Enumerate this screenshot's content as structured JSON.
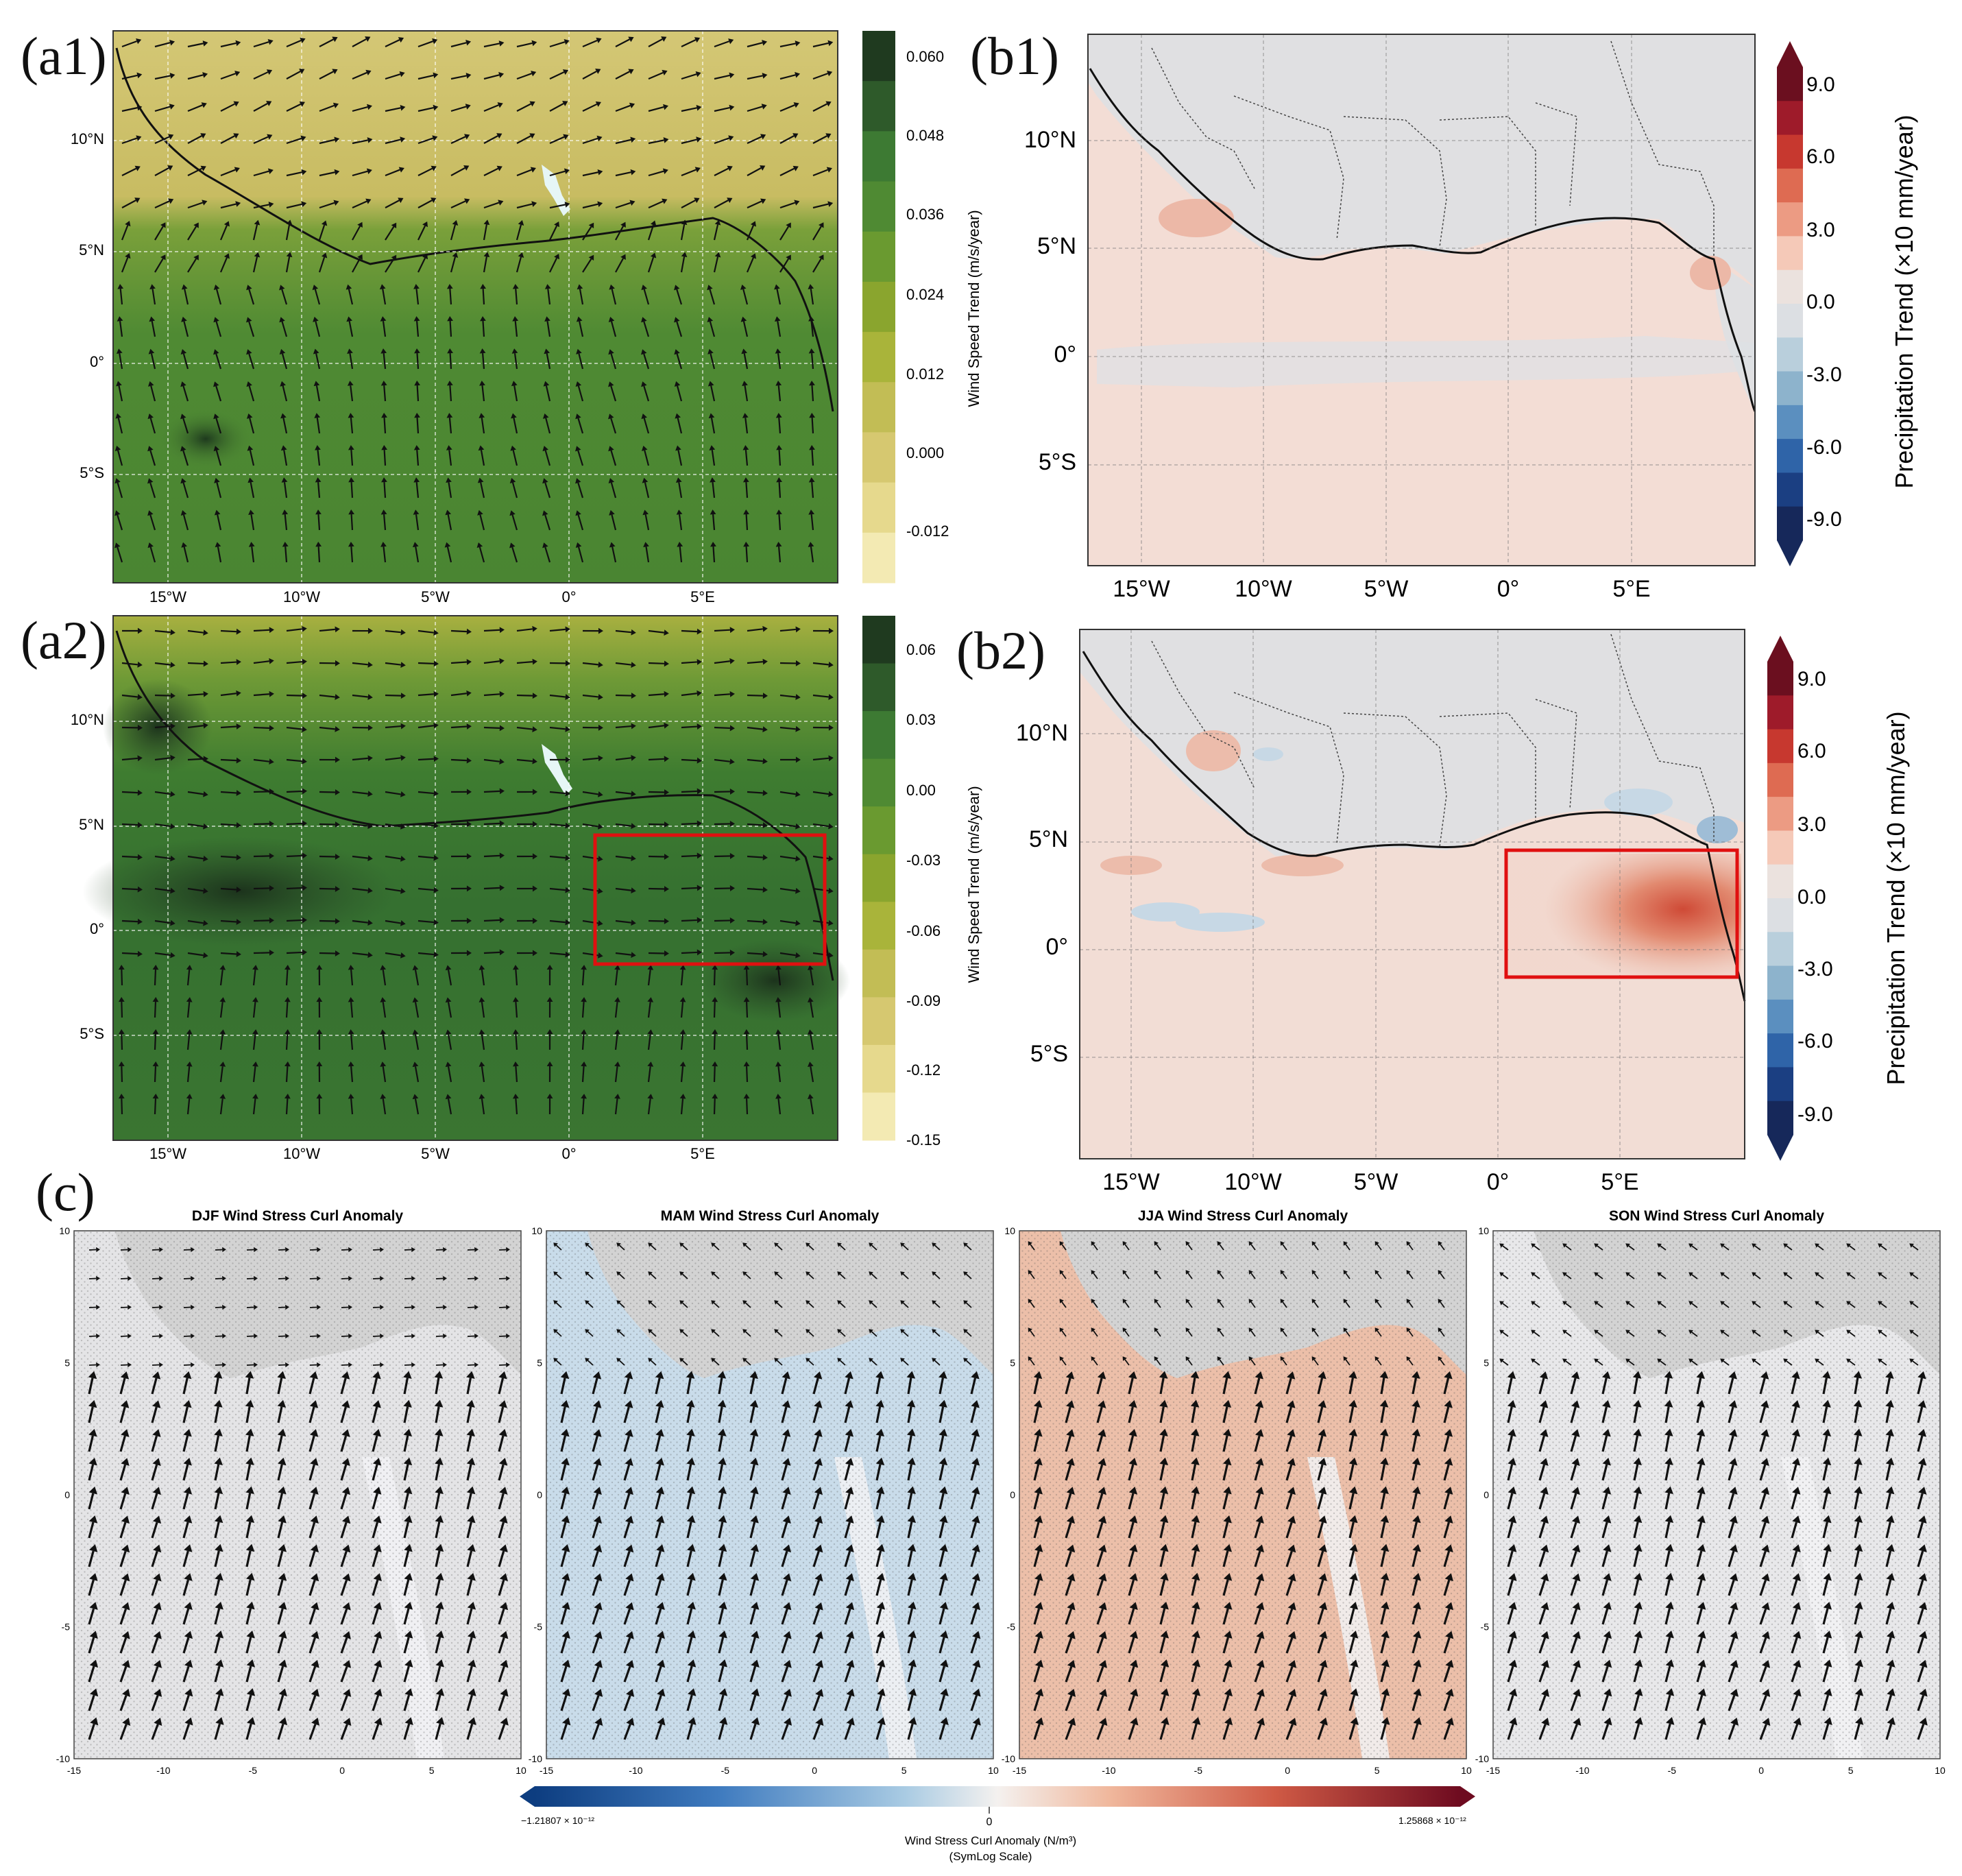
{
  "panels": {
    "a1": {
      "label": "(a1)",
      "lat_ticks": [
        "10°N",
        "5°N",
        "0°",
        "5°S"
      ],
      "lon_ticks": [
        "15°W",
        "10°W",
        "5°W",
        "0°",
        "5°E"
      ],
      "colorbar": {
        "title": "Wind Speed Trend (m/s/year)",
        "ticks": [
          "0.060",
          "0.048",
          "0.036",
          "0.024",
          "0.012",
          "0.000",
          "-0.012"
        ],
        "colors": [
          "#1f3a1f",
          "#2e5a2a",
          "#3d7a33",
          "#4f8a33",
          "#6a9a30",
          "#8aa52e",
          "#a9b43a",
          "#c2bd55",
          "#d6c870",
          "#e6d98d",
          "#f3eab3"
        ]
      }
    },
    "a2": {
      "label": "(a2)",
      "lat_ticks": [
        "10°N",
        "5°N",
        "0°",
        "5°S"
      ],
      "lon_ticks": [
        "15°W",
        "10°W",
        "5°W",
        "0°",
        "5°E"
      ],
      "colorbar": {
        "title": "Wind Speed Trend (m/s/year)",
        "ticks": [
          "0.06",
          "0.03",
          "0.00",
          "-0.03",
          "-0.06",
          "-0.09",
          "-0.12",
          "-0.15"
        ],
        "colors": [
          "#1f3a1f",
          "#2e5a2a",
          "#3d7a33",
          "#4f8a33",
          "#6a9a30",
          "#8aa52e",
          "#a9b43a",
          "#c2bd55",
          "#d6c870",
          "#e6d98d",
          "#f3eab3"
        ]
      }
    },
    "b1": {
      "label": "(b1)",
      "lat_ticks": [
        "10°N",
        "5°N",
        "0°",
        "5°S"
      ],
      "lon_ticks": [
        "15°W",
        "10°W",
        "5°W",
        "0°",
        "5°E"
      ],
      "colorbar": {
        "title": "Precipitation Trend (×10 mm/year)",
        "ticks": [
          "9.0",
          "6.0",
          "3.0",
          "0.0",
          "-3.0",
          "-6.0",
          "-9.0"
        ],
        "colors": [
          "#6b0f1f",
          "#9e1b2a",
          "#c7382f",
          "#de6b52",
          "#ec9b83",
          "#f5c9b8",
          "#ebe2de",
          "#dcdfe3",
          "#b9cfdc",
          "#8db3cc",
          "#5b8fbf",
          "#2f64a8",
          "#1b3f82",
          "#16285a"
        ]
      }
    },
    "b2": {
      "label": "(b2)",
      "lat_ticks": [
        "10°N",
        "5°N",
        "0°",
        "5°S"
      ],
      "lon_ticks": [
        "15°W",
        "10°W",
        "5°W",
        "0°",
        "5°E"
      ],
      "colorbar": {
        "title": "Precipitation Trend (×10 mm/year)",
        "ticks": [
          "9.0",
          "6.0",
          "3.0",
          "0.0",
          "-3.0",
          "-6.0",
          "-9.0"
        ],
        "colors": [
          "#6b0f1f",
          "#9e1b2a",
          "#c7382f",
          "#de6b52",
          "#ec9b83",
          "#f5c9b8",
          "#ebe2de",
          "#dcdfe3",
          "#b9cfdc",
          "#8db3cc",
          "#5b8fbf",
          "#2f64a8",
          "#1b3f82",
          "#16285a"
        ]
      }
    },
    "c": {
      "label": "(c)",
      "subplots": [
        {
          "title": "DJF Wind Stress Curl Anomaly",
          "fill": "#e4e4e6"
        },
        {
          "title": "MAM Wind Stress Curl Anomaly",
          "fill": "#c9dcea"
        },
        {
          "title": "JJA Wind Stress Curl Anomaly",
          "fill": "#ecbfa9"
        },
        {
          "title": "SON Wind Stress Curl Anomaly",
          "fill": "#e8e8ea"
        }
      ],
      "y_ticks": [
        "10",
        "5",
        "0",
        "-5",
        "-10"
      ],
      "x_ticks": [
        "-15",
        "-10",
        "-5",
        "0",
        "5",
        "10"
      ],
      "colorbar": {
        "min_label": "−1.21807 × 10⁻¹²",
        "mid_label": "0",
        "max_label": "1.25868 × 10⁻¹²",
        "title": "Wind Stress Curl Anomaly (N/m³)",
        "subtitle": "(SymLog Scale)"
      }
    }
  },
  "colors": {
    "land_gray": "#d3d3d3",
    "highlight_box": "#e01010",
    "coast": "#111111"
  }
}
